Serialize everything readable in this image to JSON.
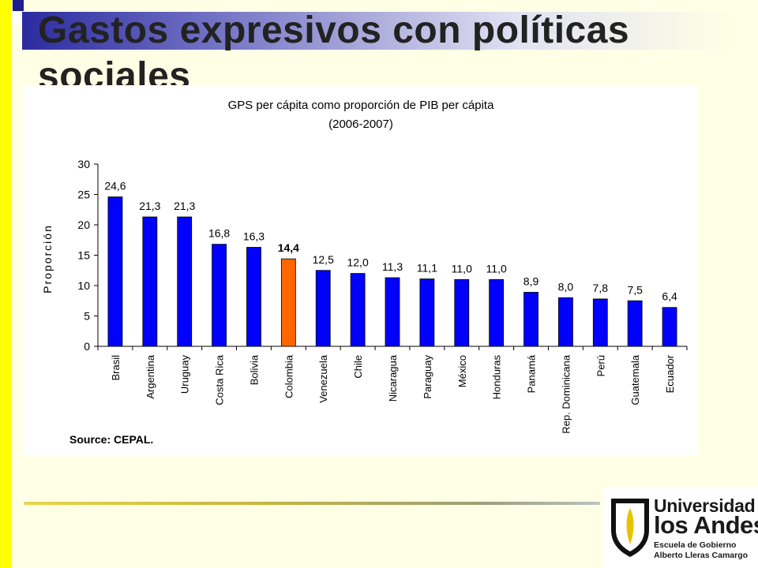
{
  "slide": {
    "title": "Gastos expresivos con políticas sociales",
    "source": "Source: CEPAL.",
    "accent_colors": {
      "left_bar": "#FFFF00",
      "title_bar": "#2B2BA0",
      "bar_default": "#0000FF",
      "bar_highlight": "#FF6600"
    }
  },
  "logo": {
    "line1": "Universidad de",
    "line2": "los Andes",
    "line3": "Escuela de Gobierno",
    "line4": "Alberto Lleras Camargo",
    "icon": "shield-icon"
  },
  "chart_data": {
    "type": "bar",
    "title": "GPS per cápita como proporción de PIB per cápita",
    "subtitle": "(2006-2007)",
    "xlabel": "",
    "ylabel": "Proporción",
    "ylim": [
      0,
      30
    ],
    "yticks": [
      0,
      5,
      10,
      15,
      20,
      25,
      30
    ],
    "grid": false,
    "legend": "none",
    "categories": [
      "Brasil",
      "Argentina",
      "Uruguay",
      "Costa Rica",
      "Bolivia",
      "Colombia",
      "Venezuela",
      "Chile",
      "Nicaragua",
      "Paraguay",
      "México",
      "Honduras",
      "Panamá",
      "Rep. Dominicana",
      "Perú",
      "Guatemala",
      "Ecuador"
    ],
    "values": [
      24.6,
      21.3,
      21.3,
      16.8,
      16.3,
      14.4,
      12.5,
      12.0,
      11.3,
      11.1,
      11.0,
      11.0,
      8.9,
      8.0,
      7.8,
      7.5,
      6.4
    ],
    "value_labels": [
      "24,6",
      "21,3",
      "21,3",
      "16,8",
      "16,3",
      "14,4",
      "12,5",
      "12,0",
      "11,3",
      "11,1",
      "11,0",
      "11,0",
      "8,9",
      "8,0",
      "7,8",
      "7,5",
      "6,4"
    ],
    "highlight_index": 5
  }
}
